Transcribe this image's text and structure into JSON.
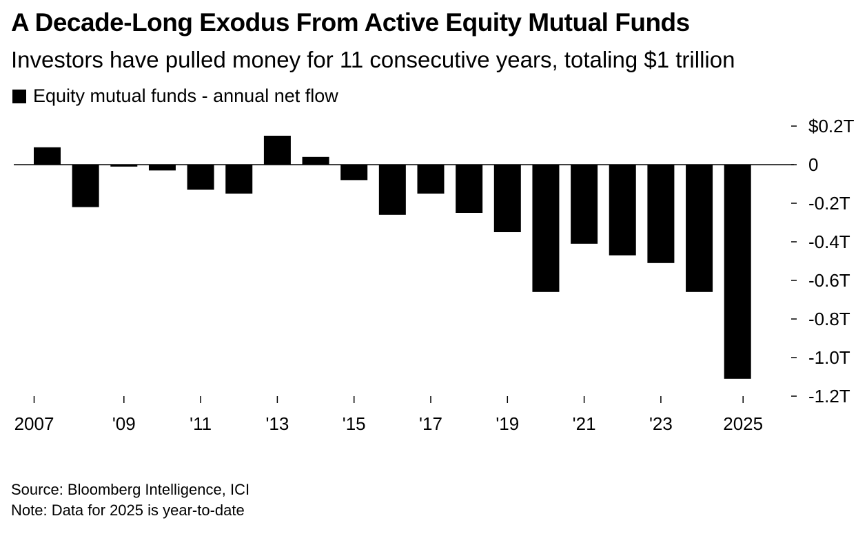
{
  "title": "A Decade-Long Exodus From Active Equity Mutual Funds",
  "subtitle": "Investors have pulled money for 11 consecutive years, totaling $1 trillion",
  "source": "Source: Bloomberg Intelligence, ICI",
  "note": "Note: Data for 2025 is year-to-date",
  "colors": {
    "bar": "#000000",
    "background": "#ffffff"
  },
  "chart_data": {
    "type": "bar",
    "title": "A Decade-Long Exodus From Active Equity Mutual Funds",
    "subtitle": "Investors have pulled money for 11 consecutive years, totaling $1 trillion",
    "xlabel": "",
    "ylabel": "",
    "legend_position": "top-left",
    "grid": false,
    "categories": [
      "2007",
      "2008",
      "2009",
      "2010",
      "2011",
      "2012",
      "2013",
      "2014",
      "2015",
      "2016",
      "2017",
      "2018",
      "2019",
      "2020",
      "2021",
      "2022",
      "2023",
      "2024",
      "2025"
    ],
    "series": [
      {
        "name": "Equity mutual funds - annual net flow",
        "unit": "trillions USD",
        "values": [
          0.09,
          -0.22,
          -0.01,
          -0.03,
          -0.13,
          -0.15,
          0.15,
          0.04,
          -0.08,
          -0.26,
          -0.15,
          -0.25,
          -0.35,
          -0.66,
          -0.41,
          -0.47,
          -0.51,
          -0.66,
          -1.11
        ]
      }
    ],
    "ylim": [
      -1.2,
      0.2
    ],
    "y_ticks": [
      {
        "value": 0.2,
        "label": "$0.2T"
      },
      {
        "value": 0,
        "label": "0"
      },
      {
        "value": -0.2,
        "label": "-0.2T"
      },
      {
        "value": -0.4,
        "label": "-0.4T"
      },
      {
        "value": -0.6,
        "label": "-0.6T"
      },
      {
        "value": -0.8,
        "label": "-0.8T"
      },
      {
        "value": -1.0,
        "label": "-1.0T"
      },
      {
        "value": -1.2,
        "label": "-1.2T"
      }
    ],
    "x_ticks": [
      {
        "value": 2007,
        "label": "2007"
      },
      {
        "value": 2009,
        "label": "'09"
      },
      {
        "value": 2011,
        "label": "'11"
      },
      {
        "value": 2013,
        "label": "'13"
      },
      {
        "value": 2015,
        "label": "'15"
      },
      {
        "value": 2017,
        "label": "'17"
      },
      {
        "value": 2019,
        "label": "'19"
      },
      {
        "value": 2021,
        "label": "'21"
      },
      {
        "value": 2023,
        "label": "'23"
      },
      {
        "value": 2025,
        "label": "2025"
      }
    ]
  }
}
